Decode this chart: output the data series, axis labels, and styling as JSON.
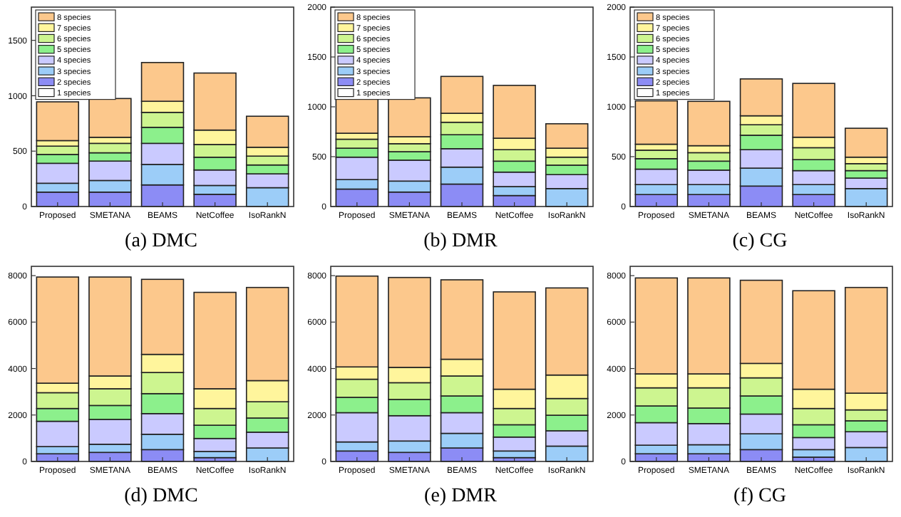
{
  "chart_data": [
    {
      "type": "bar",
      "stacked": true,
      "title": "(a) DMC",
      "categories": [
        "Proposed",
        "SMETANA",
        "BEAMS",
        "NetCoffee",
        "IsoRankN"
      ],
      "ylim": [
        0,
        1800
      ],
      "yticks": [
        0,
        500,
        1000,
        1500
      ],
      "legend": "top left",
      "grid": false,
      "series": [
        {
          "name": "1 species",
          "color": "#ffffff",
          "values": [
            0,
            0,
            0,
            0,
            0
          ]
        },
        {
          "name": "2 species",
          "color": "#8c8cf5",
          "values": [
            130,
            130,
            195,
            110,
            0
          ]
        },
        {
          "name": "3 species",
          "color": "#9ccdf8",
          "values": [
            80,
            105,
            185,
            80,
            170
          ]
        },
        {
          "name": "4 species",
          "color": "#cacaff",
          "values": [
            180,
            175,
            190,
            140,
            125
          ]
        },
        {
          "name": "5 species",
          "color": "#8cf08c",
          "values": [
            80,
            75,
            145,
            115,
            80
          ]
        },
        {
          "name": "6 species",
          "color": "#cdf590",
          "values": [
            75,
            85,
            135,
            115,
            80
          ]
        },
        {
          "name": "7 species",
          "color": "#fff59c",
          "values": [
            50,
            55,
            100,
            130,
            80
          ]
        },
        {
          "name": "8 species",
          "color": "#fcc88c",
          "values": [
            350,
            350,
            350,
            515,
            280
          ]
        }
      ]
    },
    {
      "type": "bar",
      "stacked": true,
      "title": "(b) DMR",
      "categories": [
        "Proposed",
        "SMETANA",
        "BEAMS",
        "NetCoffee",
        "IsoRankN"
      ],
      "ylim": [
        0,
        2000
      ],
      "yticks": [
        0,
        500,
        1000,
        1500,
        2000
      ],
      "legend": "top left",
      "grid": false,
      "series": [
        {
          "name": "1 species",
          "color": "#ffffff",
          "values": [
            0,
            0,
            0,
            0,
            0
          ]
        },
        {
          "name": "2 species",
          "color": "#8c8cf5",
          "values": [
            175,
            145,
            225,
            110,
            0
          ]
        },
        {
          "name": "3 species",
          "color": "#9ccdf8",
          "values": [
            95,
            110,
            170,
            90,
            180
          ]
        },
        {
          "name": "4 species",
          "color": "#cacaff",
          "values": [
            225,
            210,
            185,
            145,
            140
          ]
        },
        {
          "name": "5 species",
          "color": "#8cf08c",
          "values": [
            90,
            85,
            140,
            110,
            95
          ]
        },
        {
          "name": "6 species",
          "color": "#cdf590",
          "values": [
            90,
            80,
            125,
            115,
            80
          ]
        },
        {
          "name": "7 species",
          "color": "#fff59c",
          "values": [
            60,
            70,
            90,
            115,
            90
          ]
        },
        {
          "name": "8 species",
          "color": "#fcc88c",
          "values": [
            345,
            390,
            370,
            530,
            245
          ]
        }
      ]
    },
    {
      "type": "bar",
      "stacked": true,
      "title": "(c) CG",
      "categories": [
        "Proposed",
        "SMETANA",
        "BEAMS",
        "NetCoffee",
        "IsoRankN"
      ],
      "ylim": [
        0,
        2000
      ],
      "yticks": [
        0,
        500,
        1000,
        1500,
        2000
      ],
      "legend": "top left",
      "grid": false,
      "series": [
        {
          "name": "1 species",
          "color": "#ffffff",
          "values": [
            0,
            0,
            0,
            0,
            0
          ]
        },
        {
          "name": "2 species",
          "color": "#8c8cf5",
          "values": [
            120,
            120,
            205,
            120,
            0
          ]
        },
        {
          "name": "3 species",
          "color": "#9ccdf8",
          "values": [
            100,
            100,
            180,
            100,
            180
          ]
        },
        {
          "name": "4 species",
          "color": "#cacaff",
          "values": [
            155,
            145,
            185,
            140,
            105
          ]
        },
        {
          "name": "5 species",
          "color": "#8cf08c",
          "values": [
            105,
            90,
            145,
            110,
            75
          ]
        },
        {
          "name": "6 species",
          "color": "#cdf590",
          "values": [
            85,
            85,
            105,
            120,
            70
          ]
        },
        {
          "name": "7 species",
          "color": "#fff59c",
          "values": [
            60,
            70,
            90,
            105,
            65
          ]
        },
        {
          "name": "8 species",
          "color": "#fcc88c",
          "values": [
            435,
            445,
            370,
            540,
            290
          ]
        }
      ]
    },
    {
      "type": "bar",
      "stacked": true,
      "title": "(d) DMC",
      "categories": [
        "Proposed",
        "SMETANA",
        "BEAMS",
        "NetCoffee",
        "IsoRankN"
      ],
      "ylim": [
        0,
        8400
      ],
      "yticks": [
        0,
        2000,
        4000,
        6000,
        8000
      ],
      "legend": false,
      "grid": false,
      "series": [
        {
          "color": "#ffffff",
          "values": [
            0,
            0,
            0,
            0,
            0
          ]
        },
        {
          "color": "#8c8cf5",
          "values": [
            330,
            390,
            510,
            165,
            0
          ]
        },
        {
          "color": "#9ccdf8",
          "values": [
            310,
            350,
            660,
            265,
            580
          ]
        },
        {
          "color": "#cacaff",
          "values": [
            1090,
            1070,
            890,
            560,
            680
          ]
        },
        {
          "color": "#8cf08c",
          "values": [
            550,
            600,
            860,
            570,
            610
          ]
        },
        {
          "color": "#cdf590",
          "values": [
            680,
            720,
            910,
            720,
            700
          ]
        },
        {
          "color": "#fff59c",
          "values": [
            410,
            550,
            780,
            850,
            910
          ]
        },
        {
          "color": "#fcc88c",
          "values": [
            4570,
            4260,
            3230,
            4150,
            4010
          ]
        }
      ]
    },
    {
      "type": "bar",
      "stacked": true,
      "title": "(e) DMR",
      "categories": [
        "Proposed",
        "SMETANA",
        "BEAMS",
        "NetCoffee",
        "IsoRankN"
      ],
      "ylim": [
        0,
        8400
      ],
      "yticks": [
        0,
        2000,
        4000,
        6000,
        8000
      ],
      "legend": false,
      "grid": false,
      "series": [
        {
          "color": "#ffffff",
          "values": [
            0,
            0,
            0,
            0,
            0
          ]
        },
        {
          "color": "#8c8cf5",
          "values": [
            450,
            390,
            580,
            165,
            0
          ]
        },
        {
          "color": "#9ccdf8",
          "values": [
            390,
            490,
            630,
            285,
            660
          ]
        },
        {
          "color": "#cacaff",
          "values": [
            1260,
            1090,
            890,
            600,
            660
          ]
        },
        {
          "color": "#8cf08c",
          "values": [
            660,
            700,
            720,
            530,
            670
          ]
        },
        {
          "color": "#cdf590",
          "values": [
            780,
            720,
            860,
            700,
            720
          ]
        },
        {
          "color": "#fff59c",
          "values": [
            530,
            660,
            720,
            830,
            1010
          ]
        },
        {
          "color": "#fcc88c",
          "values": [
            3910,
            3870,
            3420,
            4190,
            3750
          ]
        }
      ]
    },
    {
      "type": "bar",
      "stacked": true,
      "title": "(f) CG",
      "categories": [
        "Proposed",
        "SMETANA",
        "BEAMS",
        "NetCoffee",
        "IsoRankN"
      ],
      "ylim": [
        0,
        8400
      ],
      "yticks": [
        0,
        2000,
        4000,
        6000,
        8000
      ],
      "legend": false,
      "grid": false,
      "series": [
        {
          "color": "#ffffff",
          "values": [
            0,
            0,
            0,
            0,
            0
          ]
        },
        {
          "color": "#8c8cf5",
          "values": [
            330,
            330,
            510,
            185,
            0
          ]
        },
        {
          "color": "#9ccdf8",
          "values": [
            370,
            390,
            680,
            325,
            600
          ]
        },
        {
          "color": "#cacaff",
          "values": [
            970,
            910,
            850,
            520,
            680
          ]
        },
        {
          "color": "#8cf08c",
          "values": [
            720,
            670,
            780,
            550,
            470
          ]
        },
        {
          "color": "#cdf590",
          "values": [
            780,
            870,
            780,
            700,
            470
          ]
        },
        {
          "color": "#fff59c",
          "values": [
            600,
            600,
            620,
            830,
            720
          ]
        },
        {
          "color": "#fcc88c",
          "values": [
            4130,
            4130,
            3580,
            4240,
            4550
          ]
        }
      ]
    }
  ]
}
